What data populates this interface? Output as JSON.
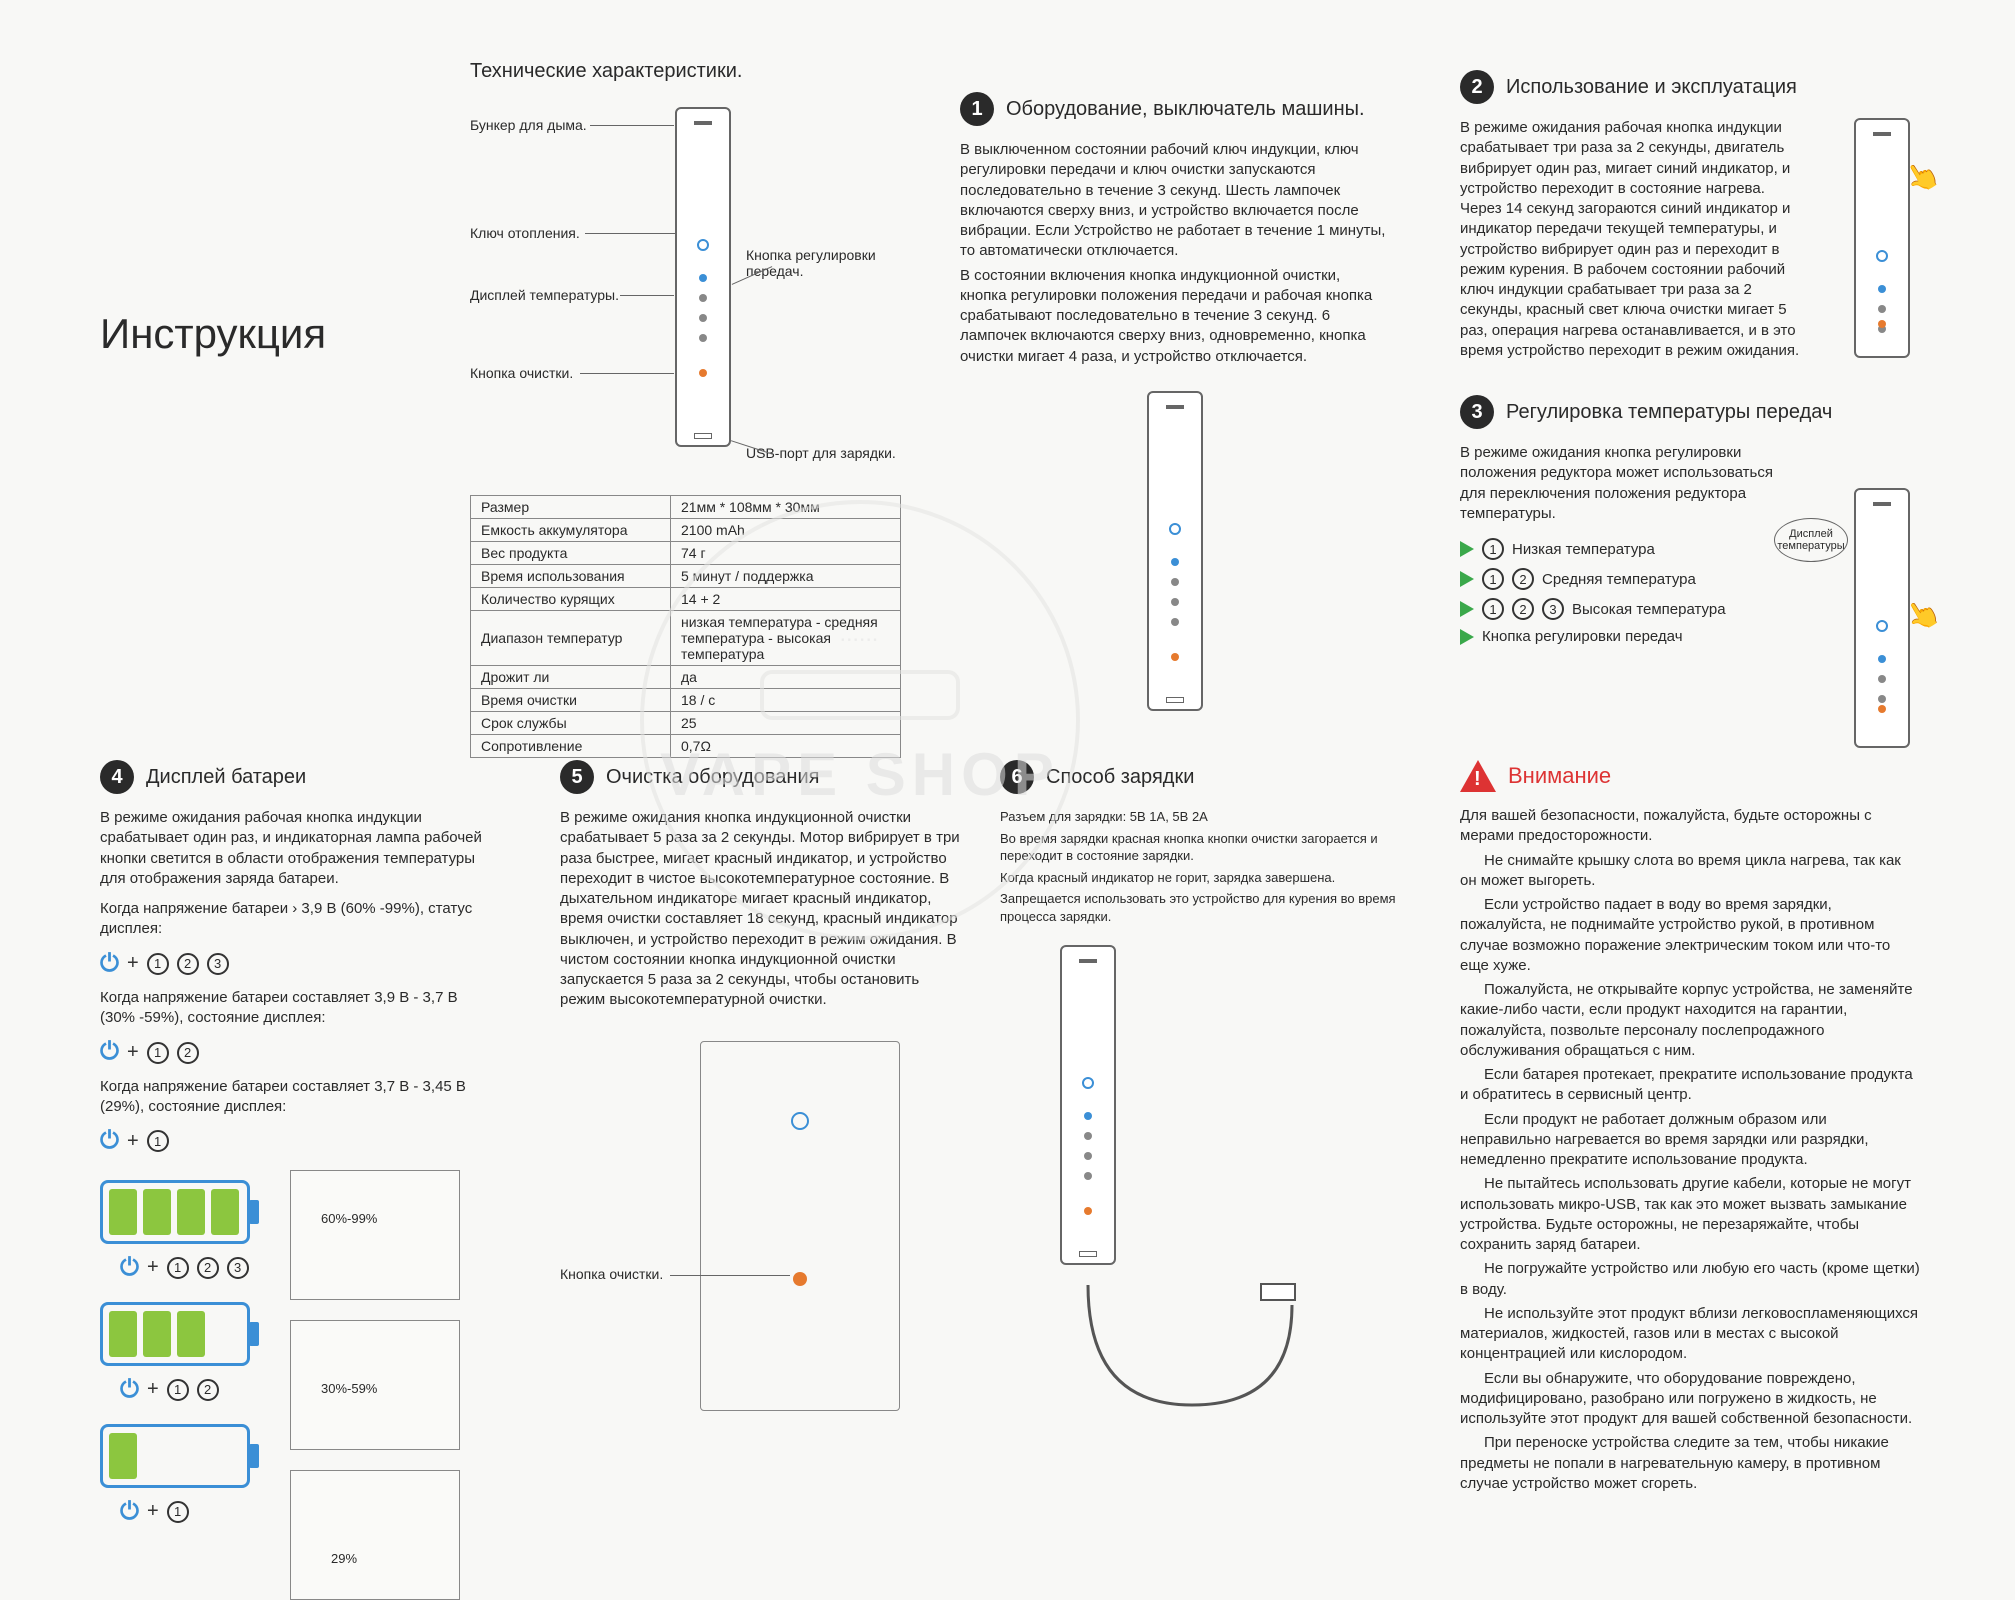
{
  "main_title": "Инструкция",
  "tech": {
    "heading": "Технические характеристики.",
    "labels": {
      "bunker": "Бункер для дыма.",
      "heat_key": "Ключ отопления.",
      "temp_display": "Дисплей температуры.",
      "clean_btn": "Кнопка очистки.",
      "gear_btn": "Кнопка регулировки передач.",
      "usb": "USB-порт для зарядки."
    },
    "rows": [
      [
        "Размер",
        "21мм * 108мм * 30мм"
      ],
      [
        "Емкость аккумулятора",
        "2100 mAh"
      ],
      [
        "Вес продукта",
        "74 г"
      ],
      [
        "Время использования",
        "5 минут / поддержка"
      ],
      [
        "Количество курящих",
        "14 + 2"
      ],
      [
        "Диапазон температур",
        "низкая температура - средняя температура - высокая температура"
      ],
      [
        "Дрожит ли",
        "да"
      ],
      [
        "Время очистки",
        "18 / с"
      ],
      [
        "Срок службы",
        "25"
      ],
      [
        "Сопротивление",
        "0,7Ω"
      ]
    ]
  },
  "s1": {
    "title": "Оборудование, выключатель машины.",
    "p1": "В выключенном состоянии рабочий ключ индукции, ключ регулировки передачи и ключ очистки запускаются последовательно в течение 3 секунд. Шесть лампочек включаются сверху вниз, и устройство включается после вибрации. Если Устройство не работает в течение 1 минуты, то автоматически отключается.",
    "p2": "В состоянии включения кнопка индукционной очистки, кнопка регулировки положения передачи и рабочая кнопка срабатывают последовательно в течение 3 секунд. 6 лампочек включаются сверху вниз, одновременно, кнопка очистки мигает 4 раза, и устройство отключается."
  },
  "s2": {
    "title": "Использование и эксплуатация",
    "p1": "В режиме ожидания рабочая кнопка индукции срабатывает три раза за 2 секунды, двигатель вибрирует один раз, мигает синий индикатор, и устройство переходит в состояние нагрева. Через 14 секунд загораются синий индикатор и индикатор передачи текущей температуры, и устройство вибрирует один раз и переходит в режим курения. В рабочем состоянии рабочий ключ индукции срабатывает три раза за 2 секунды, красный свет ключа очистки мигает 5 раз, операция нагрева останавливается, и в это время устройство переходит в режим ожидания."
  },
  "s3": {
    "title": "Регулировка температуры передач",
    "p1": "В режиме ожидания кнопка регулировки положения редуктора может использоваться для переключения положения редуктора температуры.",
    "rows": [
      {
        "nums": [
          "1"
        ],
        "label": "Низкая температура"
      },
      {
        "nums": [
          "1",
          "2"
        ],
        "label": "Средняя температура"
      },
      {
        "nums": [
          "1",
          "2",
          "3"
        ],
        "label": "Высокая температура"
      }
    ],
    "knob": "Кнопка регулировки передач",
    "bubble": "Дисплей температуры"
  },
  "s4": {
    "title": "Дисплей батареи",
    "p1": "В режиме ожидания рабочая кнопка индукции срабатывает один раз, и индикаторная лампа рабочей кнопки светится в области отображения температуры для отображения заряда батареи.",
    "line1a": "Когда напряжение батареи › 3,9 В (60% -99%), статус дисплея:",
    "line2a": "Когда напряжение батареи составляет 3,9 В - 3,7 В (30% -59%), состояние дисплея:",
    "line3a": "Когда напряжение батареи составляет 3,7 В - 3,45 В (29%), состояние дисплея:",
    "panels": [
      "60%-99%",
      "30%-59%",
      "29%"
    ]
  },
  "s5": {
    "title": "Очистка оборудования",
    "p1": "В режиме ожидания кнопка индукционной очистки срабатывает 5 раза за 2 секунды. Мотор вибрирует в три раза быстрее, мигает красный индикатор, и устройство переходит в чистое высокотемпературное состояние. В дыхательном индикаторе мигает красный индикатор, время очистки составляет 18 секунд, красный индикатор выключен, и устройство переходит в режим ожидания. В чистом состоянии кнопка индукционной очистки запускается 5 раза за 2 секунды, чтобы остановить режим высокотемпературной очистки.",
    "label": "Кнопка очистки."
  },
  "s6": {
    "title": "Способ зарядки",
    "p1": "Разъем для зарядки: 5В 1А, 5В 2А",
    "p2": "Во время зарядки красная кнопка кнопки очистки загорается и переходит в состояние зарядки.",
    "p3": "Когда красный индикатор не горит, зарядка завершена.",
    "p4": "Запрещается использовать это устройство для курения во время процесса зарядки."
  },
  "warn": {
    "title": "Внимание",
    "paras": [
      "Для вашей безопасности, пожалуйста, будьте осторожны с мерами предосторожности.",
      "Не снимайте крышку слота во время цикла нагрева, так как он может выгореть.",
      "Если устройство падает в воду во время зарядки, пожалуйста, не поднимайте устройство рукой, в противном случае возможно поражение электрическим током или что-то еще хуже.",
      "Пожалуйста, не открывайте корпус устройства, не заменяйте какие-либо части, если продукт находится на гарантии, пожалуйста, позвольте персоналу послепродажного обслуживания обращаться с ним.",
      "Если батарея протекает, прекратите использование продукта и обратитесь в сервисный центр.",
      "Если продукт не работает должным образом или неправильно нагревается во время зарядки или разрядки, немедленно прекратите использование продукта.",
      "Не пытайтесь использовать другие кабели, которые не могут использовать микро-USB, так как это может вызвать замыкание устройства. Будьте осторожны, не перезаряжайте, чтобы сохранить заряд батареи.",
      "Не погружайте устройство или любую его часть (кроме щетки) в воду.",
      "Не используйте этот продукт вблизи легковоспламеняющихся материалов, жидкостей, газов или в местах с высокой концентрацией или кислородом.",
      "Если вы обнаружите, что оборудование повреждено, модифицировано, разобрано или погружено в жидкость, не используйте этот продукт для вашей собственной безопасности.",
      "При переноске устройства следите за тем, чтобы никакие предметы не попали в нагревательную камеру, в противном случае устройство может сгореть."
    ]
  },
  "watermark": "VAPE SHOP"
}
